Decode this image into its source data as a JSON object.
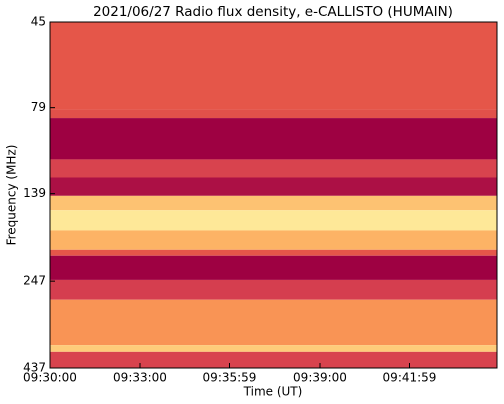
{
  "chart_data": {
    "type": "heatmap",
    "title": "2021/06/27  Radio flux density, e-CALLISTO (HUMAIN)",
    "x_label": "Time (UT)",
    "y_label": "Frequency (MHz)",
    "xlim": [
      34200,
      35094
    ],
    "xticks": [
      {
        "value": 34200,
        "label": "09:30:00"
      },
      {
        "value": 34380,
        "label": "09:33:00"
      },
      {
        "value": 34559,
        "label": "09:35:59"
      },
      {
        "value": 34740,
        "label": "09:39:00"
      },
      {
        "value": 34919,
        "label": "09:41:59"
      }
    ],
    "ylim": [
      437,
      45
    ],
    "log_y": true,
    "yticks": [
      45,
      79,
      139,
      247,
      437
    ],
    "y_bins": [
      45,
      80,
      84.6,
      111,
      125,
      141,
      155,
      177,
      201,
      209,
      245,
      279,
      376,
      393,
      437
    ],
    "values": [
      0.3,
      0.28,
      0.0,
      0.22,
      0.05,
      0.68,
      0.85,
      0.62,
      0.3,
      0.0,
      0.2,
      0.52,
      0.72,
      0.22
    ],
    "zlim": [
      0,
      1
    ],
    "colormap": [
      "#9e0142",
      "#d53e4f",
      "#f46d43",
      "#fdae61",
      "#fee08b",
      "#ffffbf"
    ]
  }
}
